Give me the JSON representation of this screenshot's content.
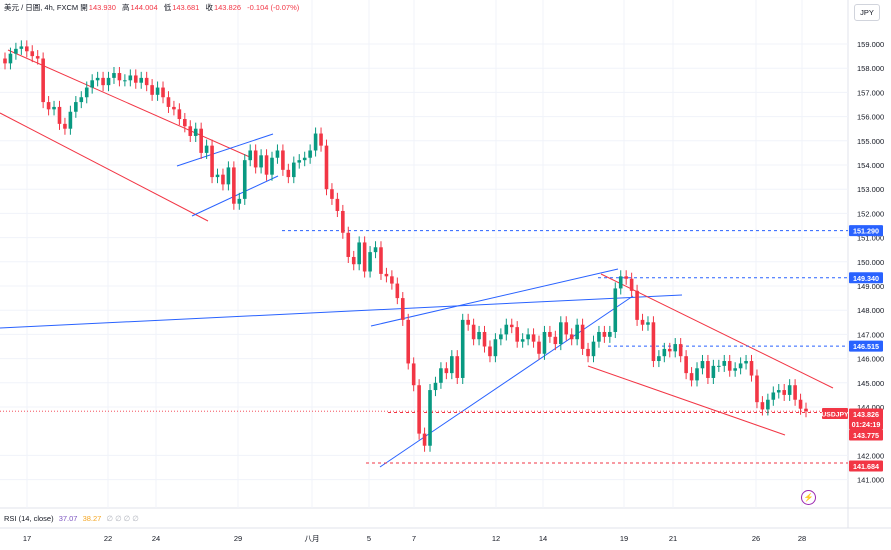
{
  "header": {
    "symbol": "美元 / 日圓, 4h, FXCM",
    "open_label": "開",
    "open": "143.930",
    "high_label": "高",
    "high": "144.004",
    "low_label": "低",
    "low": "143.681",
    "close_label": "收",
    "close": "143.826",
    "change": "-0.104 (-0.07%)"
  },
  "currency_button": "JPY",
  "rsi": {
    "label": "RSI (14, close)",
    "value": "37.07",
    "ma": "38.27",
    "empties": "∅ ∅ ∅ ∅"
  },
  "alert_icon": "lightning-icon",
  "colors": {
    "up": "#089981",
    "down": "#f23645",
    "channel_red": "#f23645",
    "channel_blue": "#2962ff",
    "level_blue": "#2962ff"
  },
  "chart_data": {
    "type": "candlestick",
    "title": "",
    "xlabel": "",
    "ylabel": "",
    "ylim": [
      140.3,
      160.5
    ],
    "x_ticks": [
      "17",
      "22",
      "24",
      "29",
      "八月",
      "5",
      "7",
      "12",
      "14",
      "19",
      "21",
      "26",
      "28"
    ],
    "y_ticks": [
      "141.000",
      "142.000",
      "144.000",
      "145.000",
      "146.000",
      "147.000",
      "148.000",
      "149.000",
      "150.000",
      "151.000",
      "152.000",
      "153.000",
      "154.000",
      "155.000",
      "156.000",
      "157.000",
      "158.000",
      "159.000"
    ],
    "price_tags": [
      {
        "value": 151.29,
        "text": "151.290",
        "kind": "level"
      },
      {
        "value": 149.34,
        "text": "149.340",
        "kind": "level"
      },
      {
        "value": 146.515,
        "text": "146.515",
        "kind": "level"
      },
      {
        "value": 143.826,
        "text": "143.826",
        "kind": "last"
      },
      {
        "value": 143.5,
        "text": "01:24:19",
        "kind": "timer"
      },
      {
        "value": 143.775,
        "text": "143.775",
        "kind": "bid"
      },
      {
        "value": 141.684,
        "text": "141.684",
        "kind": "low"
      }
    ],
    "symbol_tag": "USDJPY",
    "ohlc_closes": [
      158.2,
      158.6,
      158.8,
      158.9,
      158.7,
      158.5,
      158.4,
      156.6,
      156.3,
      156.4,
      155.7,
      155.5,
      156.2,
      156.6,
      156.8,
      157.2,
      157.5,
      157.6,
      157.3,
      157.6,
      157.8,
      157.5,
      157.5,
      157.7,
      157.4,
      157.6,
      157.3,
      156.9,
      157.2,
      156.8,
      156.4,
      156.3,
      155.9,
      155.6,
      155.2,
      155.5,
      154.5,
      154.8,
      153.5,
      153.6,
      153.2,
      153.9,
      152.4,
      152.6,
      154.2,
      154.6,
      153.9,
      154.4,
      153.6,
      154.3,
      154.6,
      153.8,
      153.5,
      154.1,
      154.2,
      154.3,
      154.6,
      155.3,
      154.8,
      153.0,
      152.6,
      152.1,
      151.2,
      150.2,
      149.9,
      150.8,
      149.6,
      150.4,
      150.6,
      149.5,
      149.4,
      149.1,
      148.5,
      147.6,
      145.8,
      144.9,
      142.9,
      142.4,
      144.7,
      145.0,
      145.6,
      145.4,
      146.1,
      145.2,
      147.6,
      147.4,
      146.8,
      147.1,
      146.5,
      146.1,
      146.8,
      147.0,
      147.4,
      147.3,
      146.7,
      146.8,
      147.0,
      146.7,
      146.2,
      147.1,
      146.9,
      146.6,
      147.5,
      147.0,
      146.8,
      147.4,
      146.4,
      146.1,
      146.7,
      147.1,
      146.9,
      147.1,
      148.9,
      149.4,
      149.3,
      148.8,
      147.6,
      147.4,
      147.5,
      145.9,
      146.1,
      146.4,
      146.3,
      146.6,
      146.1,
      145.4,
      145.1,
      145.6,
      145.9,
      145.2,
      145.7,
      145.7,
      145.9,
      145.5,
      145.6,
      145.8,
      145.9,
      145.3,
      144.2,
      143.9,
      144.3,
      144.6,
      144.7,
      144.5,
      144.9,
      144.3,
      143.93,
      143.826
    ]
  }
}
